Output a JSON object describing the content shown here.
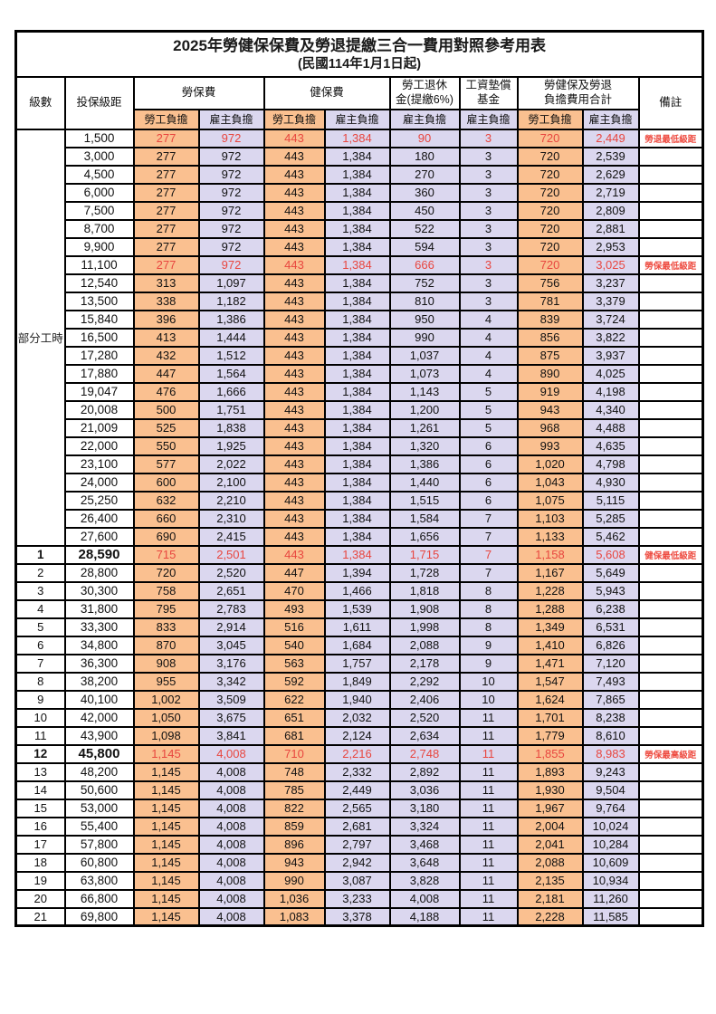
{
  "title": "2025年勞健保保費及勞退提繳三合一費用對照參考用表",
  "subtitle": "(民國114年1月1日起)",
  "colors": {
    "employee_burden_bg": "#FAC090",
    "employer_burden_bg": "#DBD7EF",
    "highlight_red": "#E8463F",
    "border": "#000000"
  },
  "header": {
    "level": "級數",
    "bracket": "投保級距",
    "labor_insurance": "勞保費",
    "health_insurance": "健保費",
    "pension_line1": "勞工退休",
    "pension_line2": "金(提繳6%)",
    "wage_fund_line1": "工資墊償",
    "wage_fund_line2": "基金",
    "total_line1": "勞健保及勞退",
    "total_line2": "負擔費用合計",
    "remark": "備註",
    "employee_burden": "勞工負擔",
    "employer_burden": "雇主負擔"
  },
  "part_time_label": "部分工時",
  "rows": [
    {
      "group": "pt",
      "level": "",
      "bracket": "1,500",
      "cells": [
        "277",
        "972",
        "443",
        "1,384",
        "90",
        "3",
        "720",
        "2,449"
      ],
      "remark": "勞退最低級距",
      "highlight": true
    },
    {
      "group": "pt",
      "level": "",
      "bracket": "3,000",
      "cells": [
        "277",
        "972",
        "443",
        "1,384",
        "180",
        "3",
        "720",
        "2,539"
      ],
      "remark": ""
    },
    {
      "group": "pt",
      "level": "",
      "bracket": "4,500",
      "cells": [
        "277",
        "972",
        "443",
        "1,384",
        "270",
        "3",
        "720",
        "2,629"
      ],
      "remark": ""
    },
    {
      "group": "pt",
      "level": "",
      "bracket": "6,000",
      "cells": [
        "277",
        "972",
        "443",
        "1,384",
        "360",
        "3",
        "720",
        "2,719"
      ],
      "remark": ""
    },
    {
      "group": "pt",
      "level": "",
      "bracket": "7,500",
      "cells": [
        "277",
        "972",
        "443",
        "1,384",
        "450",
        "3",
        "720",
        "2,809"
      ],
      "remark": ""
    },
    {
      "group": "pt",
      "level": "",
      "bracket": "8,700",
      "cells": [
        "277",
        "972",
        "443",
        "1,384",
        "522",
        "3",
        "720",
        "2,881"
      ],
      "remark": ""
    },
    {
      "group": "pt",
      "level": "",
      "bracket": "9,900",
      "cells": [
        "277",
        "972",
        "443",
        "1,384",
        "594",
        "3",
        "720",
        "2,953"
      ],
      "remark": ""
    },
    {
      "group": "pt",
      "level": "",
      "bracket": "11,100",
      "cells": [
        "277",
        "972",
        "443",
        "1,384",
        "666",
        "3",
        "720",
        "3,025"
      ],
      "remark": "勞保最低級距",
      "highlight": true
    },
    {
      "group": "pt",
      "level": "",
      "bracket": "12,540",
      "cells": [
        "313",
        "1,097",
        "443",
        "1,384",
        "752",
        "3",
        "756",
        "3,237"
      ],
      "remark": ""
    },
    {
      "group": "pt",
      "level": "",
      "bracket": "13,500",
      "cells": [
        "338",
        "1,182",
        "443",
        "1,384",
        "810",
        "3",
        "781",
        "3,379"
      ],
      "remark": ""
    },
    {
      "group": "pt",
      "level": "",
      "bracket": "15,840",
      "cells": [
        "396",
        "1,386",
        "443",
        "1,384",
        "950",
        "4",
        "839",
        "3,724"
      ],
      "remark": ""
    },
    {
      "group": "pt",
      "level": "",
      "bracket": "16,500",
      "cells": [
        "413",
        "1,444",
        "443",
        "1,384",
        "990",
        "4",
        "856",
        "3,822"
      ],
      "remark": ""
    },
    {
      "group": "pt",
      "level": "",
      "bracket": "17,280",
      "cells": [
        "432",
        "1,512",
        "443",
        "1,384",
        "1,037",
        "4",
        "875",
        "3,937"
      ],
      "remark": ""
    },
    {
      "group": "pt",
      "level": "",
      "bracket": "17,880",
      "cells": [
        "447",
        "1,564",
        "443",
        "1,384",
        "1,073",
        "4",
        "890",
        "4,025"
      ],
      "remark": ""
    },
    {
      "group": "pt",
      "level": "",
      "bracket": "19,047",
      "cells": [
        "476",
        "1,666",
        "443",
        "1,384",
        "1,143",
        "5",
        "919",
        "4,198"
      ],
      "remark": ""
    },
    {
      "group": "pt",
      "level": "",
      "bracket": "20,008",
      "cells": [
        "500",
        "1,751",
        "443",
        "1,384",
        "1,200",
        "5",
        "943",
        "4,340"
      ],
      "remark": ""
    },
    {
      "group": "pt",
      "level": "",
      "bracket": "21,009",
      "cells": [
        "525",
        "1,838",
        "443",
        "1,384",
        "1,261",
        "5",
        "968",
        "4,488"
      ],
      "remark": ""
    },
    {
      "group": "pt",
      "level": "",
      "bracket": "22,000",
      "cells": [
        "550",
        "1,925",
        "443",
        "1,384",
        "1,320",
        "6",
        "993",
        "4,635"
      ],
      "remark": ""
    },
    {
      "group": "pt",
      "level": "",
      "bracket": "23,100",
      "cells": [
        "577",
        "2,022",
        "443",
        "1,384",
        "1,386",
        "6",
        "1,020",
        "4,798"
      ],
      "remark": ""
    },
    {
      "group": "pt",
      "level": "",
      "bracket": "24,000",
      "cells": [
        "600",
        "2,100",
        "443",
        "1,384",
        "1,440",
        "6",
        "1,043",
        "4,930"
      ],
      "remark": ""
    },
    {
      "group": "pt",
      "level": "",
      "bracket": "25,250",
      "cells": [
        "632",
        "2,210",
        "443",
        "1,384",
        "1,515",
        "6",
        "1,075",
        "5,115"
      ],
      "remark": ""
    },
    {
      "group": "pt",
      "level": "",
      "bracket": "26,400",
      "cells": [
        "660",
        "2,310",
        "443",
        "1,384",
        "1,584",
        "7",
        "1,103",
        "5,285"
      ],
      "remark": ""
    },
    {
      "group": "pt",
      "level": "",
      "bracket": "27,600",
      "cells": [
        "690",
        "2,415",
        "443",
        "1,384",
        "1,656",
        "7",
        "1,133",
        "5,462"
      ],
      "remark": ""
    },
    {
      "group": "lv",
      "level": "1",
      "bracket": "28,590",
      "cells": [
        "715",
        "2,501",
        "443",
        "1,384",
        "1,715",
        "7",
        "1,158",
        "5,608"
      ],
      "remark": "健保最低級距",
      "highlight": true,
      "bold": true
    },
    {
      "group": "lv",
      "level": "2",
      "bracket": "28,800",
      "cells": [
        "720",
        "2,520",
        "447",
        "1,394",
        "1,728",
        "7",
        "1,167",
        "5,649"
      ],
      "remark": ""
    },
    {
      "group": "lv",
      "level": "3",
      "bracket": "30,300",
      "cells": [
        "758",
        "2,651",
        "470",
        "1,466",
        "1,818",
        "8",
        "1,228",
        "5,943"
      ],
      "remark": ""
    },
    {
      "group": "lv",
      "level": "4",
      "bracket": "31,800",
      "cells": [
        "795",
        "2,783",
        "493",
        "1,539",
        "1,908",
        "8",
        "1,288",
        "6,238"
      ],
      "remark": ""
    },
    {
      "group": "lv",
      "level": "5",
      "bracket": "33,300",
      "cells": [
        "833",
        "2,914",
        "516",
        "1,611",
        "1,998",
        "8",
        "1,349",
        "6,531"
      ],
      "remark": ""
    },
    {
      "group": "lv",
      "level": "6",
      "bracket": "34,800",
      "cells": [
        "870",
        "3,045",
        "540",
        "1,684",
        "2,088",
        "9",
        "1,410",
        "6,826"
      ],
      "remark": ""
    },
    {
      "group": "lv",
      "level": "7",
      "bracket": "36,300",
      "cells": [
        "908",
        "3,176",
        "563",
        "1,757",
        "2,178",
        "9",
        "1,471",
        "7,120"
      ],
      "remark": ""
    },
    {
      "group": "lv",
      "level": "8",
      "bracket": "38,200",
      "cells": [
        "955",
        "3,342",
        "592",
        "1,849",
        "2,292",
        "10",
        "1,547",
        "7,493"
      ],
      "remark": ""
    },
    {
      "group": "lv",
      "level": "9",
      "bracket": "40,100",
      "cells": [
        "1,002",
        "3,509",
        "622",
        "1,940",
        "2,406",
        "10",
        "1,624",
        "7,865"
      ],
      "remark": ""
    },
    {
      "group": "lv",
      "level": "10",
      "bracket": "42,000",
      "cells": [
        "1,050",
        "3,675",
        "651",
        "2,032",
        "2,520",
        "11",
        "1,701",
        "8,238"
      ],
      "remark": ""
    },
    {
      "group": "lv",
      "level": "11",
      "bracket": "43,900",
      "cells": [
        "1,098",
        "3,841",
        "681",
        "2,124",
        "2,634",
        "11",
        "1,779",
        "8,610"
      ],
      "remark": ""
    },
    {
      "group": "lv",
      "level": "12",
      "bracket": "45,800",
      "cells": [
        "1,145",
        "4,008",
        "710",
        "2,216",
        "2,748",
        "11",
        "1,855",
        "8,983"
      ],
      "remark": "勞保最高級距",
      "highlight": true,
      "bold": true
    },
    {
      "group": "lv",
      "level": "13",
      "bracket": "48,200",
      "cells": [
        "1,145",
        "4,008",
        "748",
        "2,332",
        "2,892",
        "11",
        "1,893",
        "9,243"
      ],
      "remark": ""
    },
    {
      "group": "lv",
      "level": "14",
      "bracket": "50,600",
      "cells": [
        "1,145",
        "4,008",
        "785",
        "2,449",
        "3,036",
        "11",
        "1,930",
        "9,504"
      ],
      "remark": ""
    },
    {
      "group": "lv",
      "level": "15",
      "bracket": "53,000",
      "cells": [
        "1,145",
        "4,008",
        "822",
        "2,565",
        "3,180",
        "11",
        "1,967",
        "9,764"
      ],
      "remark": ""
    },
    {
      "group": "lv",
      "level": "16",
      "bracket": "55,400",
      "cells": [
        "1,145",
        "4,008",
        "859",
        "2,681",
        "3,324",
        "11",
        "2,004",
        "10,024"
      ],
      "remark": ""
    },
    {
      "group": "lv",
      "level": "17",
      "bracket": "57,800",
      "cells": [
        "1,145",
        "4,008",
        "896",
        "2,797",
        "3,468",
        "11",
        "2,041",
        "10,284"
      ],
      "remark": ""
    },
    {
      "group": "lv",
      "level": "18",
      "bracket": "60,800",
      "cells": [
        "1,145",
        "4,008",
        "943",
        "2,942",
        "3,648",
        "11",
        "2,088",
        "10,609"
      ],
      "remark": ""
    },
    {
      "group": "lv",
      "level": "19",
      "bracket": "63,800",
      "cells": [
        "1,145",
        "4,008",
        "990",
        "3,087",
        "3,828",
        "11",
        "2,135",
        "10,934"
      ],
      "remark": ""
    },
    {
      "group": "lv",
      "level": "20",
      "bracket": "66,800",
      "cells": [
        "1,145",
        "4,008",
        "1,036",
        "3,233",
        "4,008",
        "11",
        "2,181",
        "11,260"
      ],
      "remark": ""
    },
    {
      "group": "lv",
      "level": "21",
      "bracket": "69,800",
      "cells": [
        "1,145",
        "4,008",
        "1,083",
        "3,378",
        "4,188",
        "11",
        "2,228",
        "11,585"
      ],
      "remark": ""
    }
  ]
}
